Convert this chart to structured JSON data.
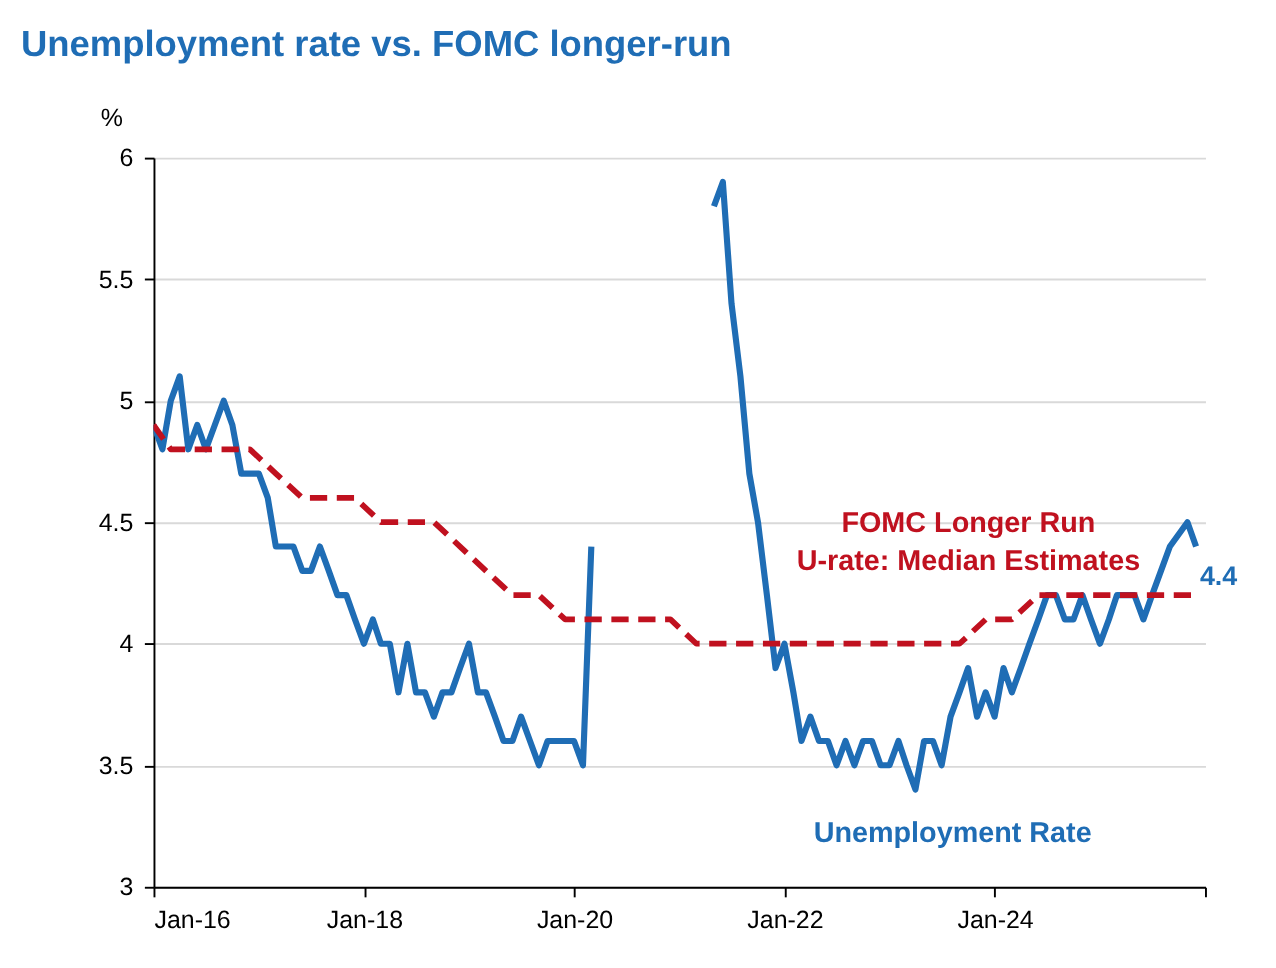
{
  "chart_data": {
    "type": "line",
    "title": "Unemployment rate vs. FOMC longer-run",
    "ylabel": "%",
    "xlim": [
      "2016-01",
      "2026-01"
    ],
    "xticks": [
      {
        "value": "2016-01",
        "label": "Jan-16"
      },
      {
        "value": "2018-01",
        "label": "Jan-18"
      },
      {
        "value": "2020-01",
        "label": "Jan-20"
      },
      {
        "value": "2022-01",
        "label": "Jan-22"
      },
      {
        "value": "2024-01",
        "label": "Jan-24"
      },
      {
        "value": "2026-01",
        "label": null
      }
    ],
    "ylim": [
      3,
      6
    ],
    "yticks": [
      3,
      3.5,
      4,
      4.5,
      5,
      5.5,
      6
    ],
    "grid": "y",
    "marker": "none",
    "series": [
      {
        "name": "Unemployment Rate",
        "color": "#1f6db5",
        "line_style": "solid",
        "x": [
          "2016-01",
          "2016-02",
          "2016-03",
          "2016-04",
          "2016-05",
          "2016-06",
          "2016-07",
          "2016-08",
          "2016-09",
          "2016-10",
          "2016-11",
          "2016-12",
          "2017-01",
          "2017-02",
          "2017-03",
          "2017-04",
          "2017-05",
          "2017-06",
          "2017-07",
          "2017-08",
          "2017-09",
          "2017-10",
          "2017-11",
          "2017-12",
          "2018-01",
          "2018-02",
          "2018-03",
          "2018-04",
          "2018-05",
          "2018-06",
          "2018-07",
          "2018-08",
          "2018-09",
          "2018-10",
          "2018-11",
          "2018-12",
          "2019-01",
          "2019-02",
          "2019-03",
          "2019-04",
          "2019-05",
          "2019-06",
          "2019-07",
          "2019-08",
          "2019-09",
          "2019-10",
          "2019-11",
          "2019-12",
          "2020-01",
          "2020-02",
          "2020-03",
          "2020-04",
          "2020-05",
          "2020-06",
          "2020-07",
          "2020-08",
          "2020-09",
          "2020-10",
          "2020-11",
          "2020-12",
          "2021-01",
          "2021-02",
          "2021-03",
          "2021-04",
          "2021-05",
          "2021-06",
          "2021-07",
          "2021-08",
          "2021-09",
          "2021-10",
          "2021-11",
          "2021-12",
          "2022-01",
          "2022-02",
          "2022-03",
          "2022-04",
          "2022-05",
          "2022-06",
          "2022-07",
          "2022-08",
          "2022-09",
          "2022-10",
          "2022-11",
          "2022-12",
          "2023-01",
          "2023-02",
          "2023-03",
          "2023-04",
          "2023-05",
          "2023-06",
          "2023-07",
          "2023-08",
          "2023-09",
          "2023-10",
          "2023-11",
          "2023-12",
          "2024-01",
          "2024-02",
          "2024-03",
          "2024-04",
          "2024-05",
          "2024-06",
          "2024-07",
          "2024-08",
          "2024-09",
          "2024-10",
          "2024-11",
          "2024-12",
          "2025-01",
          "2025-02",
          "2025-03",
          "2025-04",
          "2025-05",
          "2025-06",
          "2025-07",
          "2025-08",
          "2025-09",
          "2025-11",
          "2025-12"
        ],
        "values": [
          4.9,
          4.8,
          5.0,
          5.1,
          4.8,
          4.9,
          4.8,
          4.9,
          5.0,
          4.9,
          4.7,
          4.7,
          4.7,
          4.6,
          4.4,
          4.4,
          4.4,
          4.3,
          4.3,
          4.4,
          4.3,
          4.2,
          4.2,
          4.1,
          4.0,
          4.1,
          4.0,
          4.0,
          3.8,
          4.0,
          3.8,
          3.8,
          3.7,
          3.8,
          3.8,
          3.9,
          4.0,
          3.8,
          3.8,
          3.7,
          3.6,
          3.6,
          3.7,
          3.6,
          3.5,
          3.6,
          3.6,
          3.6,
          3.6,
          3.5,
          4.4,
          null,
          null,
          null,
          null,
          null,
          null,
          null,
          null,
          null,
          null,
          null,
          null,
          null,
          5.8,
          5.9,
          5.4,
          5.1,
          4.7,
          4.5,
          4.2,
          3.9,
          4.0,
          3.8,
          3.6,
          3.7,
          3.6,
          3.6,
          3.5,
          3.6,
          3.5,
          3.6,
          3.6,
          3.5,
          3.5,
          3.6,
          3.5,
          3.4,
          3.6,
          3.6,
          3.5,
          3.7,
          3.8,
          3.9,
          3.7,
          3.8,
          3.7,
          3.9,
          3.8,
          3.9,
          4.0,
          4.1,
          4.2,
          4.2,
          4.1,
          4.1,
          4.2,
          4.1,
          4.0,
          4.1,
          4.2,
          4.2,
          4.2,
          4.1,
          4.2,
          4.3,
          4.4,
          4.5,
          4.4
        ],
        "value_labels": [
          null,
          null,
          null,
          null,
          null,
          null,
          null,
          null,
          null,
          null,
          null,
          null,
          null,
          null,
          null,
          null,
          null,
          null,
          null,
          null,
          null,
          null,
          null,
          null,
          null,
          null,
          null,
          null,
          null,
          null,
          null,
          null,
          null,
          null,
          null,
          null,
          null,
          null,
          null,
          null,
          null,
          null,
          null,
          null,
          null,
          null,
          null,
          null,
          null,
          null,
          null,
          null,
          null,
          null,
          null,
          null,
          null,
          null,
          null,
          null,
          null,
          null,
          null,
          null,
          null,
          null,
          null,
          null,
          null,
          null,
          null,
          null,
          null,
          null,
          null,
          null,
          null,
          null,
          null,
          null,
          null,
          null,
          null,
          null,
          null,
          null,
          null,
          null,
          null,
          null,
          null,
          null,
          null,
          null,
          null,
          null,
          null,
          null,
          null,
          null,
          null,
          null,
          null,
          null,
          null,
          null,
          null,
          null,
          null,
          null,
          null,
          null,
          null,
          null,
          null,
          null,
          null,
          null,
          "4.4"
        ]
      },
      {
        "name": "FOMC Longer Run\nU-rate: Median Estimates",
        "color": "#c0111f",
        "line_style": "dashed",
        "x": [
          "2016-01",
          "2016-03",
          "2016-12",
          "2017-03",
          "2017-06",
          "2017-12",
          "2018-03",
          "2018-09",
          "2018-12",
          "2019-03",
          "2019-06",
          "2019-09",
          "2019-12",
          "2020-12",
          "2021-03",
          "2023-09",
          "2023-12",
          "2024-03",
          "2024-06",
          "2025-12"
        ],
        "values": [
          4.9,
          4.8,
          4.8,
          4.7,
          4.6,
          4.6,
          4.5,
          4.5,
          4.4,
          4.3,
          4.2,
          4.2,
          4.1,
          4.1,
          4.0,
          4.0,
          4.1,
          4.1,
          4.2,
          4.2
        ]
      }
    ]
  }
}
